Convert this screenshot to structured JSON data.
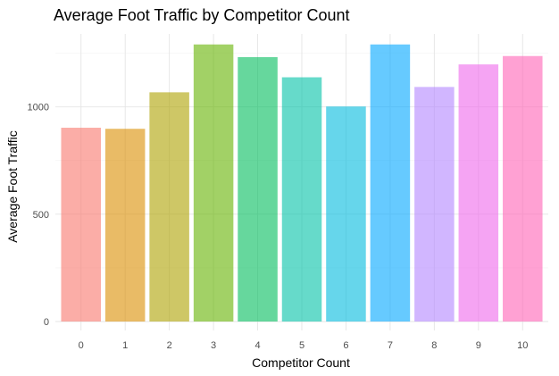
{
  "chart_data": {
    "type": "bar",
    "title": "Average Foot Traffic by Competitor Count",
    "xlabel": "Competitor Count",
    "ylabel": "Average Foot Traffic",
    "categories": [
      "0",
      "1",
      "2",
      "3",
      "4",
      "5",
      "6",
      "7",
      "8",
      "9",
      "10"
    ],
    "values": [
      903,
      898,
      1068,
      1291,
      1232,
      1138,
      1002,
      1291,
      1093,
      1198,
      1237
    ],
    "colors": [
      "#F8766D",
      "#DB8E00",
      "#AEA200",
      "#64B200",
      "#00BD5C",
      "#00C1A7",
      "#00BADE",
      "#00A6FF",
      "#B385FF",
      "#EF67EB",
      "#FF63B6"
    ],
    "bar_opacity": 0.6,
    "ylim": [
      0,
      1340
    ],
    "yticks": [
      0,
      500,
      1000
    ],
    "grid": true,
    "legend": "none"
  }
}
